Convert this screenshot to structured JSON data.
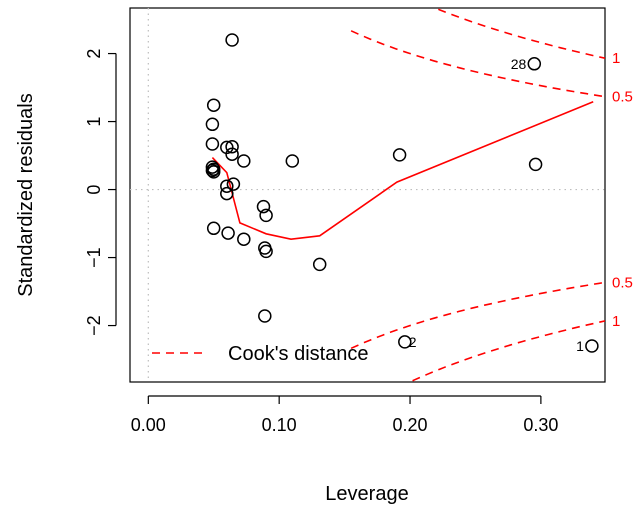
{
  "chart_data": {
    "type": "scatter",
    "title": "",
    "xlabel": "Leverage",
    "ylabel": "Standardized residuals",
    "xlim": [
      -0.014,
      0.349
    ],
    "ylim": [
      -2.83,
      2.67
    ],
    "x_ticks": [
      0.0,
      0.1,
      0.2,
      0.3
    ],
    "x_tick_labels": [
      "0.00",
      "0.10",
      "0.20",
      "0.30"
    ],
    "y_ticks": [
      -2,
      -1,
      0,
      1,
      2
    ],
    "y_tick_labels": [
      "−2",
      "−1",
      "0",
      "1",
      "2"
    ],
    "grid": false,
    "reference_lines": [
      {
        "axis": "x",
        "value": 0,
        "style": "dotted",
        "color": "#bebebe"
      },
      {
        "axis": "y",
        "value": 0,
        "style": "dotted",
        "color": "#bebebe"
      }
    ],
    "points": [
      {
        "x": 0.05,
        "y": 1.24
      },
      {
        "x": 0.049,
        "y": 0.96
      },
      {
        "x": 0.049,
        "y": 0.67
      },
      {
        "x": 0.049,
        "y": 0.33
      },
      {
        "x": 0.049,
        "y": 0.28
      },
      {
        "x": 0.05,
        "y": 0.26
      },
      {
        "x": 0.05,
        "y": 0.3
      },
      {
        "x": 0.05,
        "y": -0.57
      },
      {
        "x": 0.06,
        "y": 0.62
      },
      {
        "x": 0.064,
        "y": 0.63
      },
      {
        "x": 0.064,
        "y": 0.52
      },
      {
        "x": 0.06,
        "y": 0.05
      },
      {
        "x": 0.06,
        "y": -0.06
      },
      {
        "x": 0.065,
        "y": 0.08
      },
      {
        "x": 0.064,
        "y": 2.2
      },
      {
        "x": 0.061,
        "y": -0.64
      },
      {
        "x": 0.073,
        "y": 0.42
      },
      {
        "x": 0.073,
        "y": -0.73
      },
      {
        "x": 0.088,
        "y": -0.25
      },
      {
        "x": 0.09,
        "y": -0.38
      },
      {
        "x": 0.089,
        "y": -0.86
      },
      {
        "x": 0.09,
        "y": -0.91
      },
      {
        "x": 0.089,
        "y": -1.86
      },
      {
        "x": 0.11,
        "y": 0.42
      },
      {
        "x": 0.131,
        "y": -1.1
      },
      {
        "x": 0.192,
        "y": 0.51
      },
      {
        "x": 0.196,
        "y": -2.24
      },
      {
        "x": 0.295,
        "y": 1.85
      },
      {
        "x": 0.296,
        "y": 0.37
      },
      {
        "x": 0.339,
        "y": -2.3
      }
    ],
    "point_labels": [
      {
        "text": "28",
        "x": 0.295,
        "y": 1.85
      },
      {
        "text": "2",
        "x": 0.196,
        "y": -2.24
      },
      {
        "text": "1",
        "x": 0.339,
        "y": -2.3
      }
    ],
    "series": [
      {
        "type": "line",
        "color": "#ff0000",
        "style": "solid",
        "x": [
          0.049,
          0.06,
          0.07,
          0.09,
          0.109,
          0.131,
          0.19,
          0.34
        ],
        "y": [
          0.47,
          0.25,
          -0.49,
          -0.65,
          -0.73,
          -0.68,
          0.11,
          1.29
        ]
      }
    ],
    "cooks_distance": {
      "color": "#ff0000",
      "style": "dashed",
      "levels": [
        0.5,
        1
      ],
      "level_labels": [
        "0.5",
        "1"
      ],
      "n_params": 2,
      "x_start": 0.155,
      "x_end": 0.349,
      "samples": 40
    },
    "legend": {
      "position": "bottom-left",
      "entries": [
        {
          "label": "Cook's distance",
          "color": "#ff0000",
          "style": "dashed"
        }
      ]
    }
  }
}
